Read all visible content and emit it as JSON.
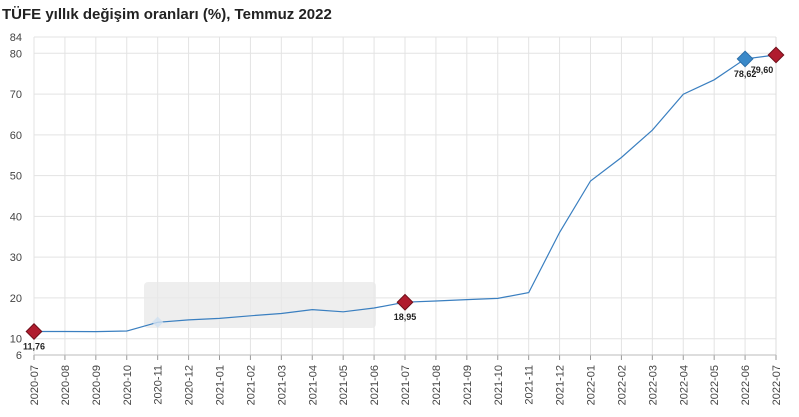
{
  "title": "TÜFE yıllık değişim oranları (%), Temmuz 2022",
  "chart_data": {
    "type": "line",
    "title": "TÜFE yıllık değişim oranları (%), Temmuz 2022",
    "categories": [
      "2020-07",
      "2020-08",
      "2020-09",
      "2020-10",
      "2020-11",
      "2020-12",
      "2021-01",
      "2021-02",
      "2021-03",
      "2021-04",
      "2021-05",
      "2021-06",
      "2021-07",
      "2021-08",
      "2021-09",
      "2021-10",
      "2021-11",
      "2021-12",
      "2022-01",
      "2022-02",
      "2022-03",
      "2022-04",
      "2022-05",
      "2022-06",
      "2022-07"
    ],
    "series": [
      {
        "values": [
          11.76,
          11.77,
          11.75,
          11.89,
          14.03,
          14.6,
          14.97,
          15.61,
          16.19,
          17.14,
          16.59,
          17.53,
          18.95,
          19.25,
          19.58,
          19.89,
          21.31,
          36.08,
          48.69,
          54.44,
          61.14,
          69.97,
          73.5,
          78.62,
          79.6
        ]
      }
    ],
    "yticks": [
      6,
      10,
      20,
      30,
      40,
      50,
      60,
      70,
      80,
      84
    ],
    "ylim": [
      6,
      84
    ],
    "grid": true,
    "color": "#3a7fc0",
    "marker_color": "#b01c2e",
    "highlight_color": "#3a89c9",
    "highlighted_points": [
      {
        "index": 0,
        "label": "11,76",
        "style": "red"
      },
      {
        "index": 12,
        "label": "18,95",
        "style": "red"
      },
      {
        "index": 23,
        "label": "78,62",
        "style": "blue"
      },
      {
        "index": 24,
        "label": "79,60",
        "style": "red"
      }
    ],
    "faded_marker_index": 4
  }
}
